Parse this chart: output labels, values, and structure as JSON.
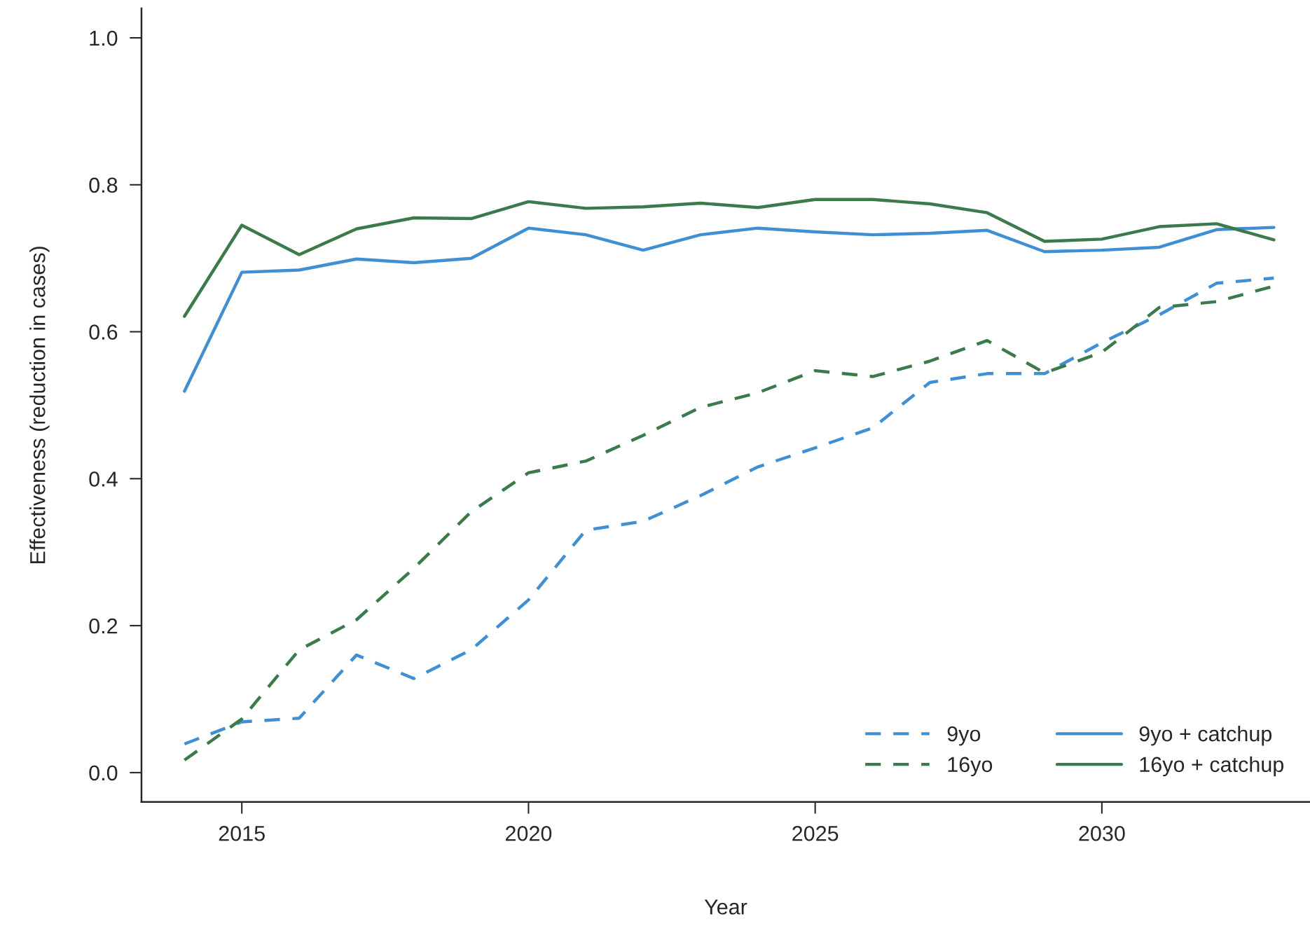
{
  "chart_data": {
    "type": "line",
    "xlabel": "Year",
    "ylabel": "Effectiveness (reduction in cases)",
    "x": [
      2014,
      2015,
      2016,
      2017,
      2018,
      2019,
      2020,
      2021,
      2022,
      2023,
      2024,
      2025,
      2026,
      2027,
      2028,
      2029,
      2030,
      2031,
      2032,
      2033
    ],
    "series": [
      {
        "name": "9yo",
        "color": "#3f8fd2",
        "line_style": "dashed",
        "values": [
          0.039,
          0.069,
          0.074,
          0.16,
          0.128,
          0.167,
          0.235,
          0.33,
          0.342,
          0.377,
          0.416,
          0.442,
          0.469,
          0.531,
          0.543,
          0.543,
          0.585,
          0.623,
          0.666,
          0.673
        ]
      },
      {
        "name": "16yo",
        "color": "#3b7a4a",
        "line_style": "dashed",
        "values": [
          0.017,
          0.073,
          0.167,
          0.208,
          0.278,
          0.355,
          0.408,
          0.424,
          0.459,
          0.497,
          0.517,
          0.547,
          0.539,
          0.56,
          0.588,
          0.544,
          0.572,
          0.633,
          0.641,
          0.662
        ]
      },
      {
        "name": "9yo + catchup",
        "color": "#3f8fd2",
        "line_style": "solid",
        "values": [
          0.519,
          0.681,
          0.684,
          0.699,
          0.694,
          0.7,
          0.741,
          0.732,
          0.711,
          0.732,
          0.741,
          0.736,
          0.732,
          0.734,
          0.738,
          0.709,
          0.711,
          0.715,
          0.739,
          0.742
        ]
      },
      {
        "name": "16yo + catchup",
        "color": "#3b7a4a",
        "line_style": "solid",
        "values": [
          0.621,
          0.745,
          0.705,
          0.74,
          0.755,
          0.754,
          0.777,
          0.768,
          0.77,
          0.775,
          0.769,
          0.78,
          0.78,
          0.774,
          0.762,
          0.723,
          0.726,
          0.743,
          0.747,
          0.725
        ]
      }
    ],
    "xlim": [
      2013.25,
      2033.63
    ],
    "ylim": [
      -0.04,
      1.04
    ],
    "xticks": [
      2015,
      2020,
      2025,
      2030
    ],
    "yticks": [
      {
        "value": 0,
        "label": "0.0"
      },
      {
        "value": 0.2,
        "label": "0.2"
      },
      {
        "value": 0.4,
        "label": "0.4"
      },
      {
        "value": 0.6,
        "label": "0.6"
      },
      {
        "value": 0.8,
        "label": "0.8"
      },
      {
        "value": 1,
        "label": "1.0"
      }
    ],
    "grid": false,
    "legend": "bottom right"
  }
}
